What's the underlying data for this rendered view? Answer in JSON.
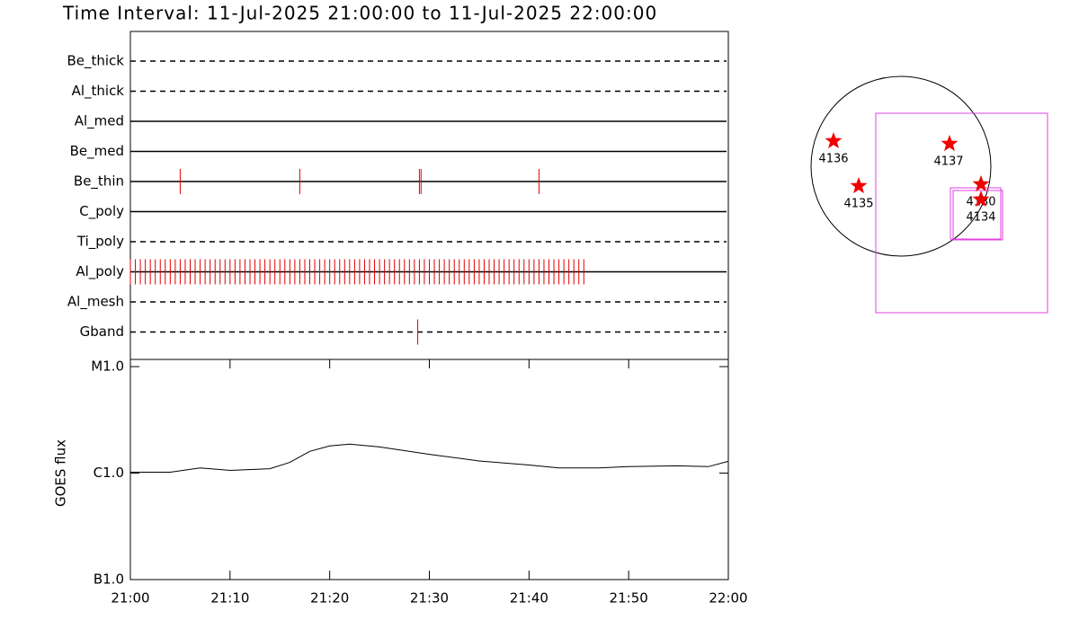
{
  "title": "Time Interval: 11-Jul-2025 21:00:00 to 11-Jul-2025 22:00:00",
  "chart_data": [
    {
      "type": "timeline",
      "xlim": [
        "21:00",
        "22:00"
      ],
      "rows": [
        {
          "name": "Be_thick",
          "style": "dashed",
          "times": []
        },
        {
          "name": "Al_thick",
          "style": "dashed",
          "times": []
        },
        {
          "name": "Al_med",
          "style": "solid",
          "times": []
        },
        {
          "name": "Be_med",
          "style": "solid",
          "times": []
        },
        {
          "name": "Be_thin",
          "style": "solid",
          "times": [
            "21:05:00",
            "21:17:00",
            "21:29:00",
            "21:29:10",
            "21:41:00"
          ]
        },
        {
          "name": "C_poly",
          "style": "solid",
          "times": []
        },
        {
          "name": "Ti_poly",
          "style": "dashed",
          "times": []
        },
        {
          "name": "Al_poly",
          "style": "solid",
          "times": [
            "21:00:00",
            "21:00:30",
            "21:01:00",
            "21:01:30",
            "21:02:00",
            "21:02:30",
            "21:03:00",
            "21:03:30",
            "21:04:00",
            "21:04:30",
            "21:05:00",
            "21:05:30",
            "21:06:00",
            "21:06:30",
            "21:07:00",
            "21:07:30",
            "21:08:00",
            "21:08:30",
            "21:09:00",
            "21:09:30",
            "21:10:00",
            "21:10:30",
            "21:11:00",
            "21:11:30",
            "21:12:00",
            "21:12:30",
            "21:13:00",
            "21:13:30",
            "21:14:00",
            "21:14:30",
            "21:15:00",
            "21:15:30",
            "21:16:00",
            "21:16:30",
            "21:17:00",
            "21:17:30",
            "21:18:00",
            "21:18:30",
            "21:19:00",
            "21:19:30",
            "21:20:00",
            "21:20:30",
            "21:21:00",
            "21:21:30",
            "21:22:00",
            "21:22:30",
            "21:23:00",
            "21:23:30",
            "21:24:00",
            "21:24:30",
            "21:25:00",
            "21:25:30",
            "21:26:00",
            "21:26:30",
            "21:27:00",
            "21:27:30",
            "21:28:00",
            "21:28:30",
            "21:29:00",
            "21:29:30",
            "21:30:00",
            "21:30:30",
            "21:31:00",
            "21:31:30",
            "21:32:00",
            "21:32:30",
            "21:33:00",
            "21:33:30",
            "21:34:00",
            "21:34:30",
            "21:35:00",
            "21:35:30",
            "21:36:00",
            "21:36:30",
            "21:37:00",
            "21:37:30",
            "21:38:00",
            "21:38:30",
            "21:39:00",
            "21:39:30",
            "21:40:00",
            "21:40:30",
            "21:41:00",
            "21:41:30",
            "21:42:00",
            "21:42:30",
            "21:43:00",
            "21:43:30",
            "21:44:00",
            "21:44:30",
            "21:45:00",
            "21:45:30"
          ]
        },
        {
          "name": "Al_mesh",
          "style": "dashed",
          "times": []
        },
        {
          "name": "Gband",
          "style": "dashed",
          "times": [
            "21:28:50"
          ]
        }
      ],
      "mark_color": "#e00000"
    },
    {
      "type": "line",
      "log_y": true,
      "y_label": "GOES flux",
      "x": [
        "21:00",
        "21:04",
        "21:07",
        "21:10",
        "21:14",
        "21:16",
        "21:18",
        "21:20",
        "21:22",
        "21:25",
        "21:30",
        "21:35",
        "21:40",
        "21:43",
        "21:47",
        "21:50",
        "21:55",
        "21:58",
        "22:00"
      ],
      "values": [
        1.02e-06,
        1.02e-06,
        1.12e-06,
        1.06e-06,
        1.1e-06,
        1.26e-06,
        1.6e-06,
        1.8e-06,
        1.87e-06,
        1.76e-06,
        1.5e-06,
        1.3e-06,
        1.19e-06,
        1.12e-06,
        1.12e-06,
        1.15e-06,
        1.17e-06,
        1.15e-06,
        1.29e-06
      ],
      "color": "#000000",
      "xlim": [
        "21:00",
        "22:00"
      ],
      "xticks": [
        "21:00",
        "21:10",
        "21:20",
        "21:30",
        "21:40",
        "21:50",
        "22:00"
      ],
      "ylim": [
        1e-07,
        1e-05
      ],
      "yticks": [
        {
          "value": 1e-05,
          "label": "M1.0"
        },
        {
          "value": 1e-06,
          "label": "C1.0"
        },
        {
          "value": 1e-07,
          "label": "B1.0"
        }
      ]
    }
  ],
  "map": {
    "regions": [
      "4136",
      "4135",
      "4137",
      "4130",
      "4134"
    ]
  }
}
